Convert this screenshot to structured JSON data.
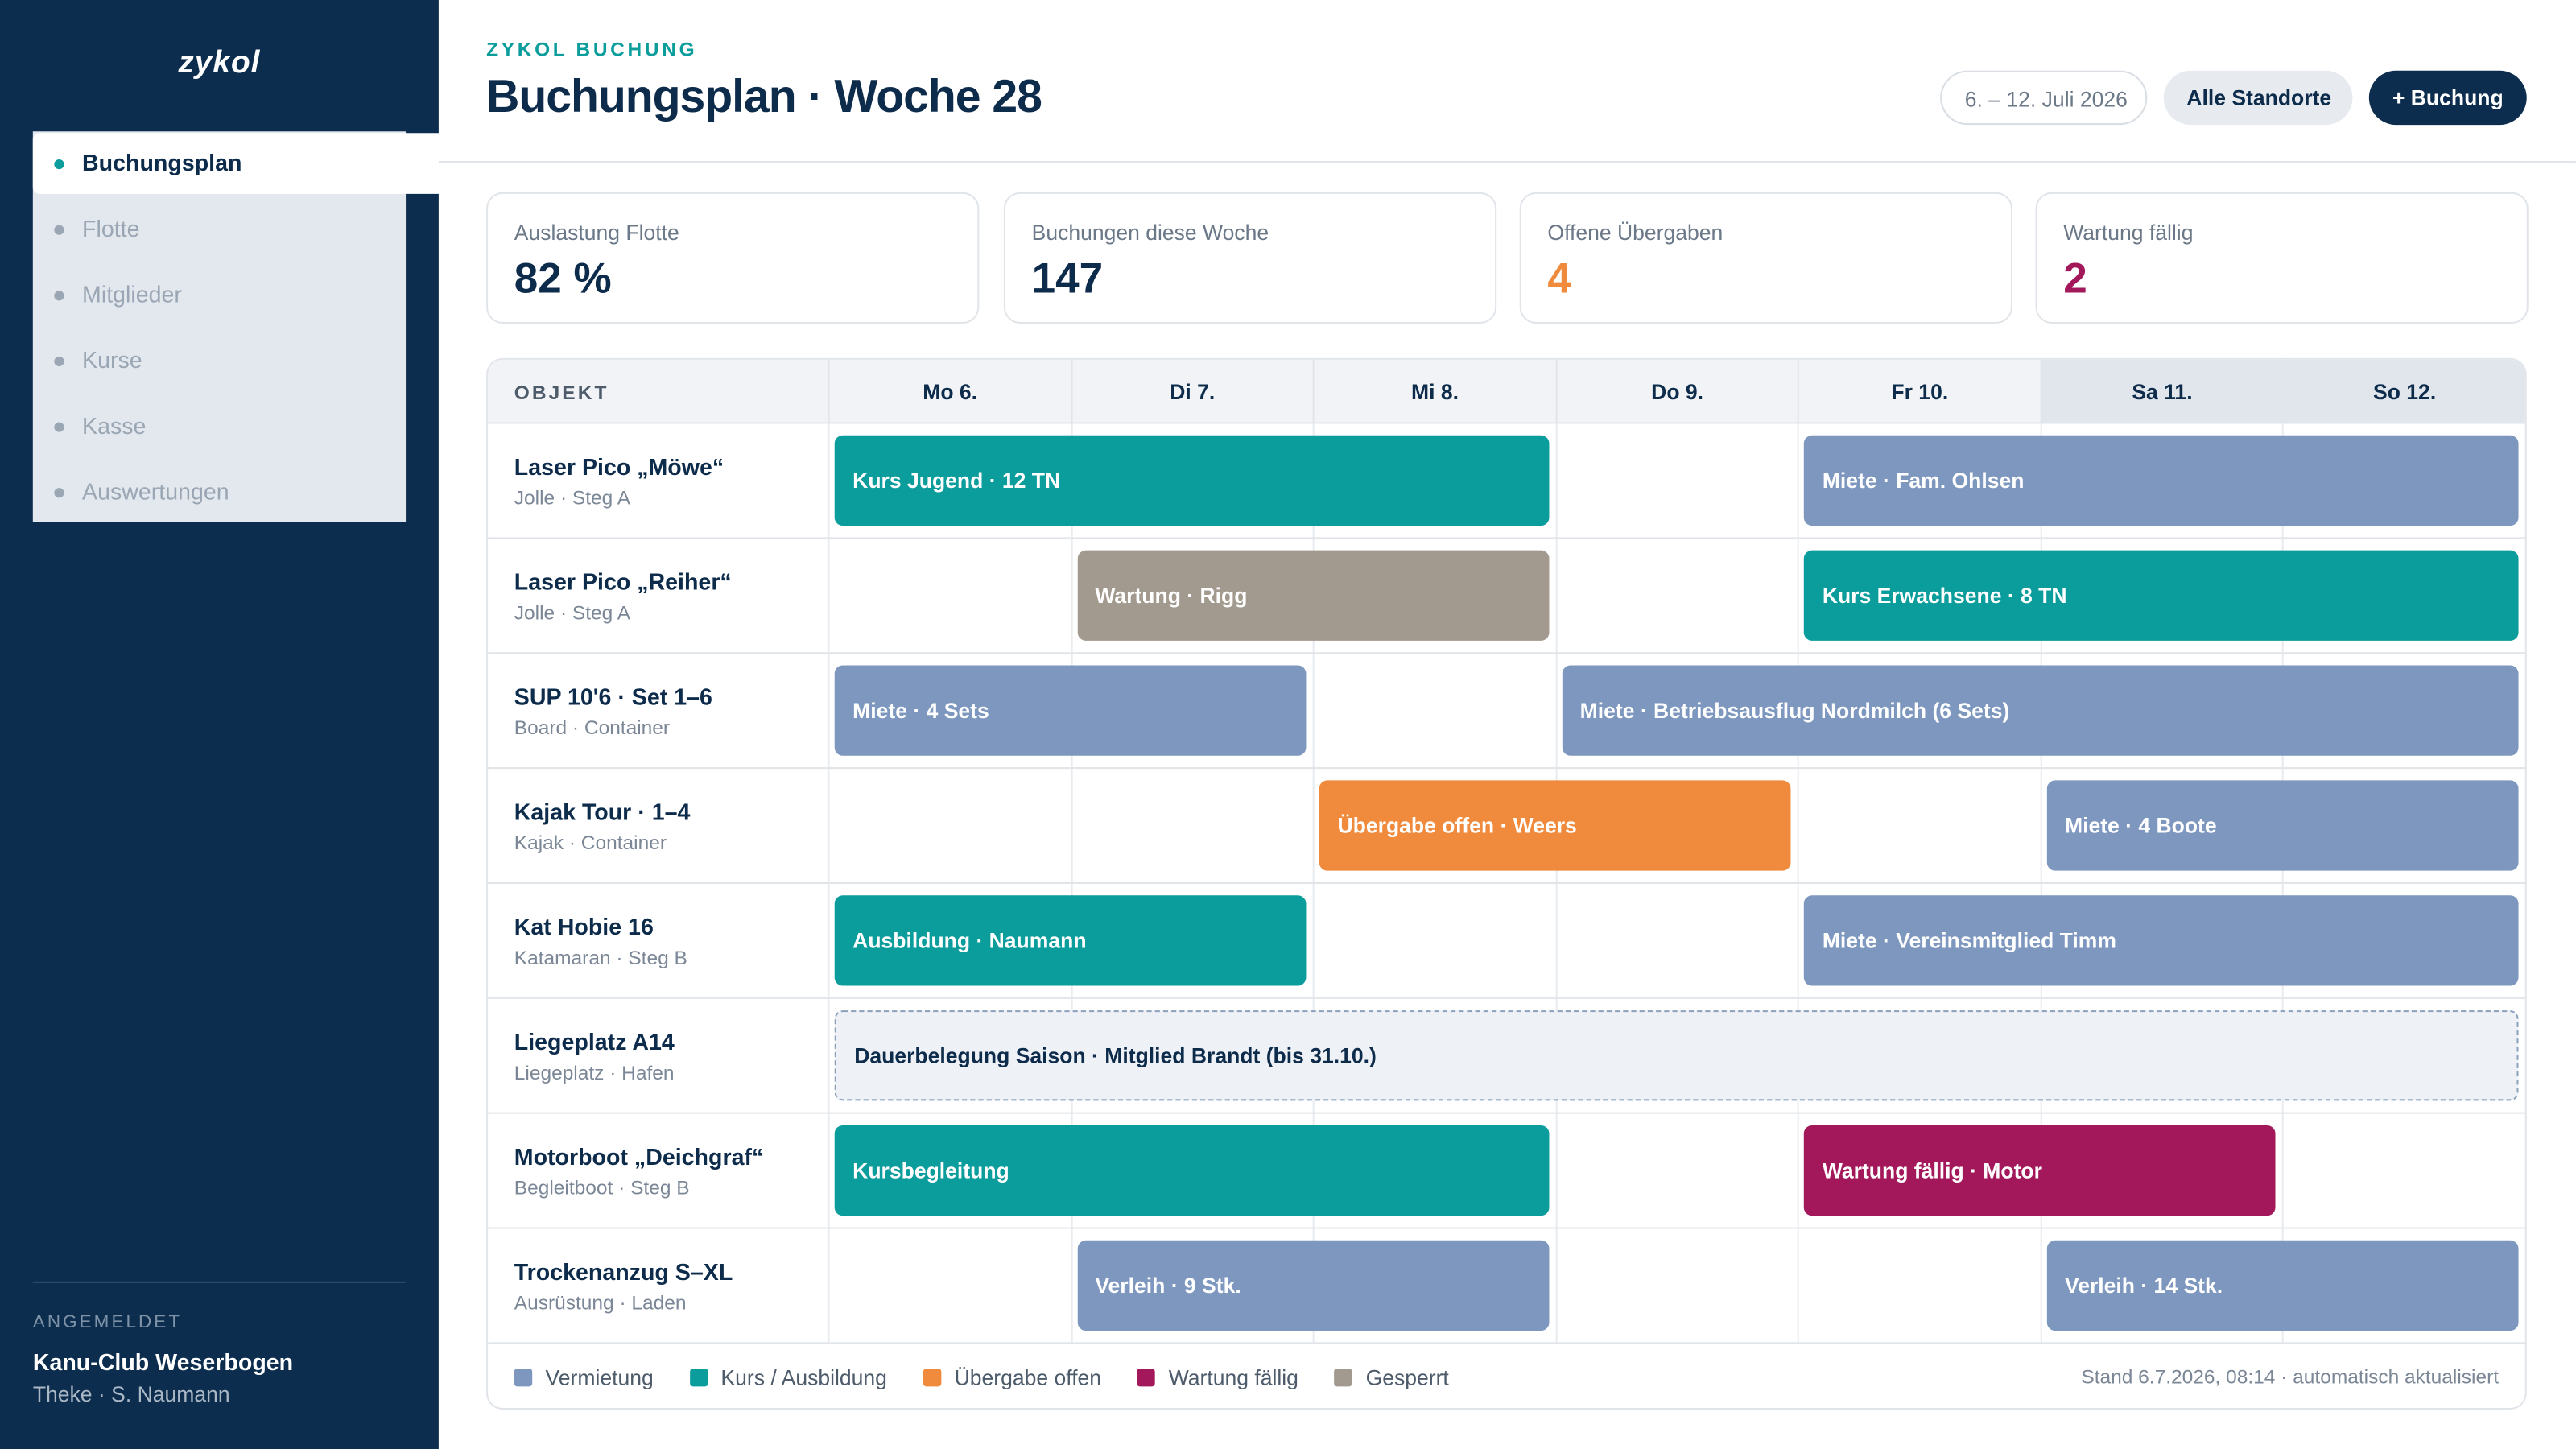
{
  "sidebar": {
    "logo": "zykol",
    "nav": [
      "Buchungsplan",
      "Flotte",
      "Mitglieder",
      "Kurse",
      "Kasse",
      "Auswertungen"
    ],
    "active": 0,
    "account": {
      "label": "ANGEMELDET",
      "org": "Kanu-Club Weserbogen",
      "user": "Theke · S. Naumann"
    }
  },
  "header": {
    "eyebrow": "ZYKOL BUCHUNG",
    "title": "Buchungsplan · Woche 28",
    "date_range": "6. – 12. Juli 2026",
    "location_button": "Alle Standorte",
    "add_button": "+ Buchung"
  },
  "kpis": [
    {
      "label": "Auslastung Flotte",
      "value": "82 %",
      "color": "#0d2b4b"
    },
    {
      "label": "Buchungen diese Woche",
      "value": "147",
      "color": "#0d2b4b"
    },
    {
      "label": "Offene Übergaben",
      "value": "4",
      "color": "#f08a3c"
    },
    {
      "label": "Wartung fällig",
      "value": "2",
      "color": "#a3185a"
    }
  ],
  "schedule": {
    "object_header": "OBJEKT",
    "days": [
      "Mo 6.",
      "Di 7.",
      "Mi 8.",
      "Do 9.",
      "Fr 10.",
      "Sa 11.",
      "So 12."
    ],
    "weekend": [
      5,
      6
    ],
    "legend": [
      {
        "name": "Vermietung",
        "color": "#7d97bf"
      },
      {
        "name": "Kurs / Ausbildung",
        "color": "#0b9c9c"
      },
      {
        "name": "Übergabe offen",
        "color": "#f08a3c"
      },
      {
        "name": "Wartung fällig",
        "color": "#a3185a"
      },
      {
        "name": "Gesperrt",
        "color": "#a39a8f"
      }
    ],
    "rows": [
      {
        "name": "Laser Pico „Möwe“",
        "sub": "Jolle · Steg A",
        "bookings": [
          {
            "label": "Kurs Jugend · 12 TN",
            "from": 0,
            "to": 2,
            "kind": 1
          },
          {
            "label": "Miete · Fam. Ohlsen",
            "from": 4,
            "to": 6,
            "kind": 0
          }
        ]
      },
      {
        "name": "Laser Pico „Reiher“",
        "sub": "Jolle · Steg A",
        "bookings": [
          {
            "label": "Wartung · Rigg",
            "from": 1,
            "to": 2,
            "kind": 4
          },
          {
            "label": "Kurs Erwachsene · 8 TN",
            "from": 4,
            "to": 6,
            "kind": 1
          }
        ]
      },
      {
        "name": "SUP 10'6 · Set 1–6",
        "sub": "Board · Container",
        "bookings": [
          {
            "label": "Miete · 4 Sets",
            "from": 0,
            "to": 1,
            "kind": 0
          },
          {
            "label": "Miete · Betriebsausflug Nordmilch (6 Sets)",
            "from": 3,
            "to": 6,
            "kind": 0
          }
        ]
      },
      {
        "name": "Kajak Tour · 1–4",
        "sub": "Kajak · Container",
        "bookings": [
          {
            "label": "Übergabe offen · Weers",
            "from": 2,
            "to": 3,
            "kind": 2
          },
          {
            "label": "Miete · 4 Boote",
            "from": 5,
            "to": 6,
            "kind": 0
          }
        ]
      },
      {
        "name": "Kat Hobie 16",
        "sub": "Katamaran · Steg B",
        "bookings": [
          {
            "label": "Ausbildung · Naumann",
            "from": 0,
            "to": 1,
            "kind": 1
          },
          {
            "label": "Miete · Vereinsmitglied Timm",
            "from": 4,
            "to": 6,
            "kind": 0
          }
        ]
      },
      {
        "name": "Liegeplatz A14",
        "sub": "Liegeplatz · Hafen",
        "bookings": [
          {
            "label": "Dauerbelegung Saison · Mitglied Brandt (bis 31.10.)",
            "from": 0,
            "to": 6,
            "style": "dashed"
          }
        ]
      },
      {
        "name": "Motorboot „Deichgraf“",
        "sub": "Begleitboot · Steg B",
        "bookings": [
          {
            "label": "Kursbegleitung",
            "from": 0,
            "to": 2,
            "kind": 1
          },
          {
            "label": "Wartung fällig · Motor",
            "from": 4,
            "to": 5,
            "kind": 3
          }
        ]
      },
      {
        "name": "Trockenanzug S–XL",
        "sub": "Ausrüstung · Laden",
        "bookings": [
          {
            "label": "Verleih · 9 Stk.",
            "from": 1,
            "to": 2,
            "kind": 0
          },
          {
            "label": "Verleih · 14 Stk.",
            "from": 5,
            "to": 6,
            "kind": 0
          }
        ]
      }
    ],
    "status": "Stand 6.7.2026, 08:14 · automatisch aktualisiert"
  }
}
